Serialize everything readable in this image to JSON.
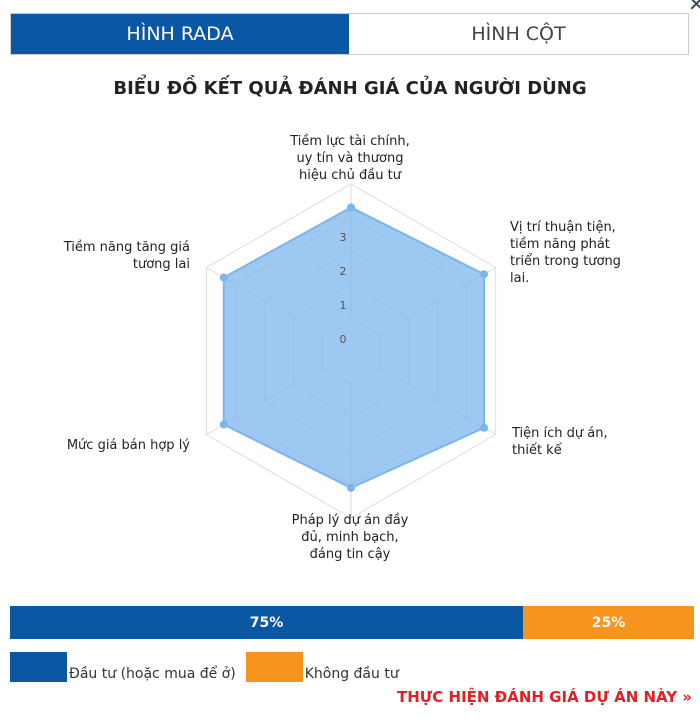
{
  "tabs": [
    {
      "label": "HÌNH RADA",
      "active": true
    },
    {
      "label": "HÌNH CỘT",
      "active": false
    }
  ],
  "close_icon": "close-icon",
  "chart_data": {
    "type": "radar",
    "title": "BIỂU ĐỒ KẾT QUẢ ĐÁNH GIÁ CỦA NGƯỜI DÙNG",
    "categories": [
      "Tiềm lực tài chính, uy tín và thương hiệu chủ đầu tư",
      "Vị trí thuận tiện, tiềm năng phát triển trong tương lai.",
      "Tiện ích dự án, thiết kế",
      "Pháp lý dự án đầy đủ, minh bạch, đáng tin cậy",
      "Mức giá bán hợp lý",
      "Tiềm năng tăng giá tương lai"
    ],
    "category_lines": [
      [
        "Tiềm lực tài chính,",
        "uy tín và thương",
        "hiệu chủ đầu tư"
      ],
      [
        "Vị trí thuận tiện,",
        "tiềm năng phát",
        "triển trong tương",
        "lai."
      ],
      [
        "Tiện ích dự án,",
        "thiết kế"
      ],
      [
        "Pháp lý dự án đầy",
        "đủ, minh bạch,",
        "đáng tin cậy"
      ],
      [
        "Mức giá bán hợp lý"
      ],
      [
        "Tiềm năng tăng giá",
        "tương lai"
      ]
    ],
    "values": [
      3.3,
      3.6,
      3.6,
      3.1,
      3.4,
      3.4
    ],
    "radial_ticks": [
      "0",
      "1",
      "2",
      "3"
    ],
    "rmin": 0,
    "rmax": 4,
    "series_color": "#7cb5ec",
    "grid": true
  },
  "split_bar": {
    "segments": [
      {
        "label": "Đầu tư (hoặc mua để ở)",
        "percent": 75,
        "text": "75%",
        "color": "#0a58a3"
      },
      {
        "label": "Không đầu tư",
        "percent": 25,
        "text": "25%",
        "color": "#f7941d"
      }
    ]
  },
  "cta": "THỰC HIỆN ĐÁNH GIÁ DỰ ÁN NÀY »"
}
